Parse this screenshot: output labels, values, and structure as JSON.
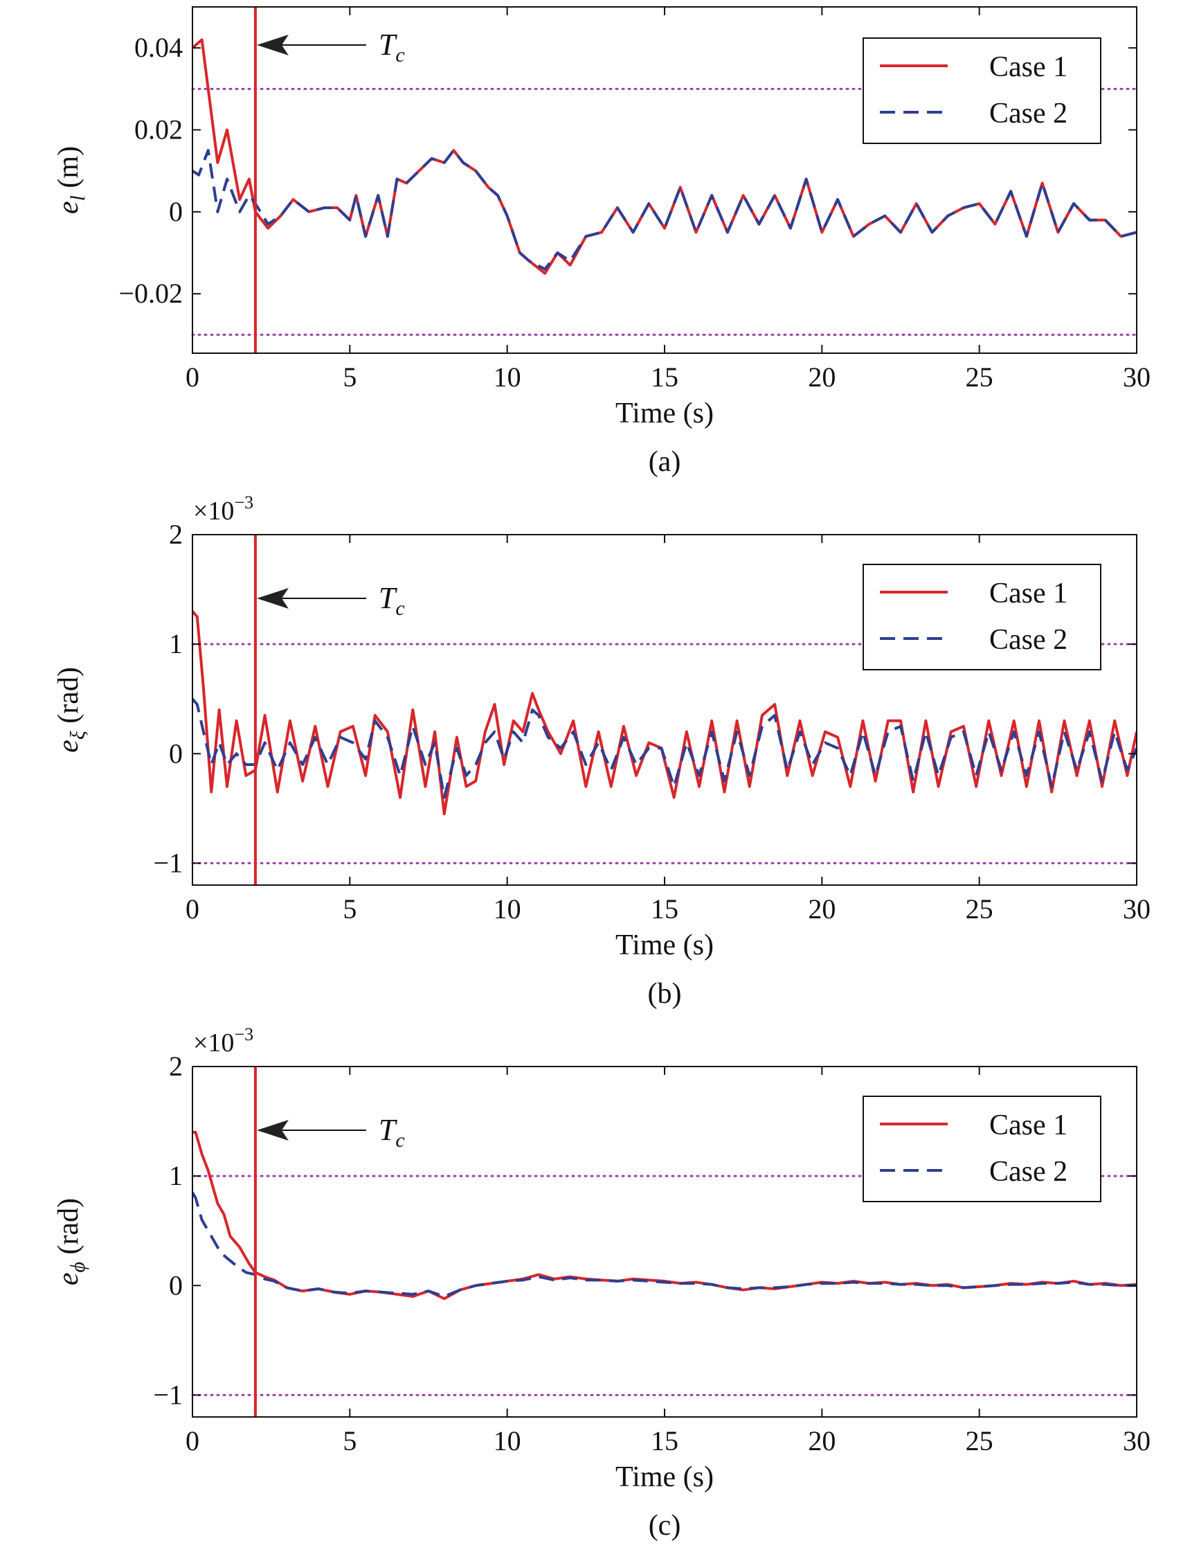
{
  "figure": {
    "legend_entries": [
      "Case 1",
      "Case 2"
    ],
    "annotation_label": "T",
    "annotation_subscript": "c",
    "colors": {
      "case1": "#d9262b",
      "case2": "#2e3e91",
      "bounds": "#9b3fa8",
      "marker": "#d9262b",
      "axes": "#111111"
    }
  },
  "chart_data": [
    {
      "type": "line",
      "caption": "(a)",
      "xlabel": "Time (s)",
      "ylabel_symbol": "e",
      "ylabel_sub": "l",
      "ylabel_unit": " (m)",
      "exponent_label": "",
      "xlim": [
        0,
        30
      ],
      "ylim": [
        -0.0345,
        0.05
      ],
      "xticks": [
        0,
        5,
        10,
        15,
        20,
        25,
        30
      ],
      "yticks": [
        -0.02,
        0,
        0.02,
        0.04
      ],
      "ytick_labels": [
        "−0.02",
        "0",
        "0.02",
        "0.04"
      ],
      "bounds": [
        0.03,
        -0.03
      ],
      "marker_x": 2.0,
      "legend_position": "top-right",
      "series": [
        {
          "name": "Case 1",
          "style": "solid",
          "x": [
            0,
            0.3,
            0.5,
            0.8,
            1.1,
            1.5,
            1.8,
            2.0,
            2.4,
            2.8,
            3.2,
            3.7,
            4.2,
            4.6,
            5.0,
            5.2,
            5.5,
            5.9,
            6.2,
            6.5,
            6.8,
            7.2,
            7.6,
            8.0,
            8.3,
            8.6,
            9.0,
            9.4,
            9.7,
            10.0,
            10.4,
            10.7,
            11.2,
            11.6,
            12.0,
            12.5,
            13.0,
            13.5,
            14.0,
            14.5,
            15.0,
            15.5,
            16.0,
            16.5,
            17.0,
            17.5,
            18.0,
            18.5,
            19.0,
            19.5,
            20.0,
            20.5,
            21.0,
            21.5,
            22.0,
            22.5,
            23.0,
            23.5,
            24.0,
            24.5,
            25.0,
            25.5,
            26.0,
            26.5,
            27.0,
            27.5,
            28.0,
            28.5,
            29.0,
            29.5,
            30.0
          ],
          "y": [
            0.04,
            0.042,
            0.03,
            0.012,
            0.02,
            0.003,
            0.008,
            0.0,
            -0.004,
            -0.001,
            0.003,
            0.0,
            0.001,
            0.001,
            -0.002,
            0.004,
            -0.006,
            0.004,
            -0.006,
            0.008,
            0.007,
            0.01,
            0.013,
            0.012,
            0.015,
            0.012,
            0.01,
            0.006,
            0.004,
            -0.001,
            -0.01,
            -0.012,
            -0.015,
            -0.01,
            -0.013,
            -0.006,
            -0.005,
            0.001,
            -0.005,
            0.002,
            -0.004,
            0.006,
            -0.005,
            0.004,
            -0.005,
            0.004,
            -0.003,
            0.004,
            -0.004,
            0.008,
            -0.005,
            0.003,
            -0.006,
            -0.003,
            -0.001,
            -0.005,
            0.002,
            -0.005,
            -0.001,
            0.001,
            0.002,
            -0.003,
            0.005,
            -0.006,
            0.007,
            -0.005,
            0.002,
            -0.002,
            -0.002,
            -0.006,
            -0.005
          ]
        },
        {
          "name": "Case 2",
          "style": "dashed",
          "x": [
            0,
            0.2,
            0.5,
            0.8,
            1.1,
            1.5,
            1.8,
            2.0,
            2.4,
            2.8,
            3.2,
            3.7,
            4.2,
            4.6,
            5.0,
            5.2,
            5.5,
            5.9,
            6.2,
            6.5,
            6.8,
            7.2,
            7.6,
            8.0,
            8.3,
            8.6,
            9.0,
            9.4,
            9.7,
            10.0,
            10.4,
            10.7,
            11.2,
            11.6,
            12.0,
            12.5,
            13.0,
            13.5,
            14.0,
            14.5,
            15.0,
            15.5,
            16.0,
            16.5,
            17.0,
            17.5,
            18.0,
            18.5,
            19.0,
            19.5,
            20.0,
            20.5,
            21.0,
            21.5,
            22.0,
            22.5,
            23.0,
            23.5,
            24.0,
            24.5,
            25.0,
            25.5,
            26.0,
            26.5,
            27.0,
            27.5,
            28.0,
            28.5,
            29.0,
            29.5,
            30.0
          ],
          "y": [
            0.01,
            0.009,
            0.015,
            0.0,
            0.008,
            0.0,
            0.004,
            0.002,
            -0.003,
            -0.001,
            0.003,
            0.0,
            0.001,
            0.001,
            -0.002,
            0.004,
            -0.006,
            0.004,
            -0.006,
            0.008,
            0.007,
            0.01,
            0.013,
            0.012,
            0.015,
            0.012,
            0.01,
            0.006,
            0.004,
            -0.001,
            -0.01,
            -0.012,
            -0.014,
            -0.01,
            -0.012,
            -0.006,
            -0.005,
            0.001,
            -0.005,
            0.002,
            -0.004,
            0.006,
            -0.005,
            0.004,
            -0.005,
            0.004,
            -0.003,
            0.004,
            -0.004,
            0.008,
            -0.005,
            0.003,
            -0.006,
            -0.003,
            -0.001,
            -0.005,
            0.002,
            -0.005,
            -0.001,
            0.001,
            0.002,
            -0.003,
            0.005,
            -0.006,
            0.007,
            -0.005,
            0.002,
            -0.002,
            -0.002,
            -0.006,
            -0.005
          ]
        }
      ]
    },
    {
      "type": "line",
      "caption": "(b)",
      "xlabel": "Time (s)",
      "ylabel_symbol": "e",
      "ylabel_sub": "ξ",
      "ylabel_unit": " (rad)",
      "exponent_label": "×10",
      "exponent_power": "−3",
      "xlim": [
        0,
        30
      ],
      "ylim": [
        -1.2,
        2
      ],
      "xticks": [
        0,
        5,
        10,
        15,
        20,
        25,
        30
      ],
      "yticks": [
        -1,
        0,
        1,
        2
      ],
      "ytick_labels": [
        "−1",
        "0",
        "1",
        "2"
      ],
      "bounds": [
        1,
        -1
      ],
      "marker_x": 2.0,
      "legend_position": "top-right",
      "series": [
        {
          "name": "Case 1",
          "style": "solid",
          "x": [
            0,
            0.15,
            0.35,
            0.6,
            0.85,
            1.1,
            1.4,
            1.7,
            2.0,
            2.3,
            2.7,
            3.1,
            3.5,
            3.9,
            4.3,
            4.7,
            5.1,
            5.5,
            5.8,
            6.2,
            6.6,
            7.0,
            7.4,
            7.7,
            8.0,
            8.4,
            8.7,
            9.0,
            9.3,
            9.6,
            9.9,
            10.2,
            10.5,
            10.8,
            11.0,
            11.3,
            11.7,
            12.1,
            12.5,
            12.9,
            13.3,
            13.7,
            14.1,
            14.5,
            14.9,
            15.3,
            15.7,
            16.1,
            16.5,
            16.9,
            17.3,
            17.7,
            18.1,
            18.5,
            18.9,
            19.3,
            19.7,
            20.1,
            20.5,
            20.9,
            21.3,
            21.7,
            22.1,
            22.5,
            22.9,
            23.3,
            23.7,
            24.1,
            24.5,
            24.9,
            25.3,
            25.7,
            26.1,
            26.5,
            26.9,
            27.3,
            27.7,
            28.1,
            28.5,
            28.9,
            29.3,
            29.7,
            30.0
          ],
          "y": [
            1.3,
            1.25,
            0.6,
            -0.35,
            0.4,
            -0.3,
            0.3,
            -0.2,
            -0.15,
            0.35,
            -0.35,
            0.3,
            -0.25,
            0.25,
            -0.3,
            0.2,
            0.25,
            -0.2,
            0.35,
            0.2,
            -0.4,
            0.4,
            -0.3,
            0.2,
            -0.55,
            0.15,
            -0.3,
            -0.25,
            0.2,
            0.45,
            -0.1,
            0.3,
            0.2,
            0.55,
            0.4,
            0.2,
            0.0,
            0.3,
            -0.3,
            0.2,
            -0.3,
            0.25,
            -0.2,
            0.1,
            0.05,
            -0.4,
            0.2,
            -0.3,
            0.3,
            -0.35,
            0.3,
            -0.3,
            0.35,
            0.45,
            -0.2,
            0.3,
            -0.2,
            0.2,
            0.15,
            -0.3,
            0.3,
            -0.25,
            0.3,
            0.3,
            -0.35,
            0.3,
            -0.3,
            0.2,
            0.25,
            -0.3,
            0.3,
            -0.2,
            0.3,
            -0.3,
            0.3,
            -0.35,
            0.3,
            -0.2,
            0.3,
            -0.3,
            0.3,
            -0.2,
            0.2
          ]
        },
        {
          "name": "Case 2",
          "style": "dashed",
          "x": [
            0,
            0.15,
            0.35,
            0.6,
            0.85,
            1.1,
            1.4,
            1.7,
            2.0,
            2.3,
            2.7,
            3.1,
            3.5,
            3.9,
            4.3,
            4.7,
            5.1,
            5.5,
            5.8,
            6.2,
            6.6,
            7.0,
            7.4,
            7.7,
            8.0,
            8.4,
            8.7,
            9.0,
            9.3,
            9.6,
            9.9,
            10.2,
            10.5,
            10.8,
            11.0,
            11.3,
            11.7,
            12.1,
            12.5,
            12.9,
            13.3,
            13.7,
            14.1,
            14.5,
            14.9,
            15.3,
            15.7,
            16.1,
            16.5,
            16.9,
            17.3,
            17.7,
            18.1,
            18.5,
            18.9,
            19.3,
            19.7,
            20.1,
            20.5,
            20.9,
            21.3,
            21.7,
            22.1,
            22.5,
            22.9,
            23.3,
            23.7,
            24.1,
            24.5,
            24.9,
            25.3,
            25.7,
            26.1,
            26.5,
            26.9,
            27.3,
            27.7,
            28.1,
            28.5,
            28.9,
            29.3,
            29.7,
            30.0
          ],
          "y": [
            0.5,
            0.45,
            0.2,
            -0.1,
            0.1,
            -0.1,
            0.0,
            -0.1,
            -0.1,
            0.1,
            -0.15,
            0.1,
            -0.1,
            0.15,
            -0.1,
            0.15,
            0.1,
            -0.05,
            0.3,
            0.15,
            -0.2,
            0.25,
            -0.1,
            0.1,
            -0.4,
            0.05,
            -0.2,
            -0.1,
            0.1,
            0.2,
            -0.05,
            0.2,
            0.1,
            0.4,
            0.35,
            0.15,
            0.05,
            0.2,
            -0.1,
            0.1,
            -0.15,
            0.15,
            -0.1,
            0.05,
            0.05,
            -0.3,
            0.1,
            -0.2,
            0.2,
            -0.25,
            0.2,
            -0.2,
            0.25,
            0.35,
            -0.15,
            0.2,
            -0.1,
            0.1,
            0.05,
            -0.2,
            0.2,
            -0.2,
            0.2,
            0.25,
            -0.25,
            0.2,
            -0.2,
            0.15,
            0.2,
            -0.2,
            0.2,
            -0.15,
            0.2,
            -0.2,
            0.2,
            -0.3,
            0.2,
            -0.15,
            0.2,
            -0.25,
            0.2,
            -0.15,
            0.05
          ]
        }
      ]
    },
    {
      "type": "line",
      "caption": "(c)",
      "xlabel": "Time (s)",
      "ylabel_symbol": "e",
      "ylabel_sub": "ϕ",
      "ylabel_unit": " (rad)",
      "exponent_label": "×10",
      "exponent_power": "−3",
      "xlim": [
        0,
        30
      ],
      "ylim": [
        -1.2,
        2
      ],
      "xticks": [
        0,
        5,
        10,
        15,
        20,
        25,
        30
      ],
      "yticks": [
        -1,
        0,
        1,
        2
      ],
      "ytick_labels": [
        "−1",
        "0",
        "1",
        "2"
      ],
      "bounds": [
        1,
        -1
      ],
      "marker_x": 2.0,
      "legend_position": "top-right",
      "series": [
        {
          "name": "Case 1",
          "style": "solid",
          "x": [
            0,
            0.1,
            0.3,
            0.5,
            0.7,
            0.8,
            1.0,
            1.2,
            1.5,
            1.8,
            2.0,
            2.3,
            2.6,
            3.0,
            3.5,
            4.0,
            4.5,
            5.0,
            5.5,
            6.0,
            6.5,
            7.0,
            7.5,
            8.0,
            8.5,
            9.0,
            9.5,
            10.0,
            10.5,
            11.0,
            11.5,
            12.0,
            12.5,
            13.0,
            13.5,
            14.0,
            14.5,
            15.0,
            15.5,
            16.0,
            16.5,
            17.0,
            17.5,
            18.0,
            18.5,
            19.0,
            19.5,
            20.0,
            20.5,
            21.0,
            21.5,
            22.0,
            22.5,
            23.0,
            23.5,
            24.0,
            24.5,
            25.0,
            25.5,
            26.0,
            26.5,
            27.0,
            27.5,
            28.0,
            28.5,
            29.0,
            29.5,
            30.0
          ],
          "y": [
            1.4,
            1.4,
            1.2,
            1.05,
            0.85,
            0.75,
            0.65,
            0.45,
            0.35,
            0.2,
            0.12,
            0.08,
            0.05,
            -0.02,
            -0.05,
            -0.03,
            -0.06,
            -0.08,
            -0.05,
            -0.06,
            -0.08,
            -0.1,
            -0.05,
            -0.12,
            -0.04,
            0.0,
            0.02,
            0.04,
            0.06,
            0.1,
            0.06,
            0.08,
            0.06,
            0.05,
            0.04,
            0.06,
            0.05,
            0.04,
            0.02,
            0.03,
            0.01,
            -0.02,
            -0.04,
            -0.02,
            -0.03,
            -0.01,
            0.01,
            0.03,
            0.02,
            0.04,
            0.02,
            0.03,
            0.01,
            0.02,
            0.0,
            0.01,
            -0.02,
            -0.01,
            0.0,
            0.02,
            0.01,
            0.03,
            0.02,
            0.04,
            0.01,
            0.02,
            0.0,
            0.01
          ]
        },
        {
          "name": "Case 2",
          "style": "dashed",
          "x": [
            0,
            0.1,
            0.3,
            0.5,
            0.7,
            0.9,
            1.1,
            1.4,
            1.7,
            2.0,
            2.3,
            2.6,
            3.0,
            3.5,
            4.0,
            4.5,
            5.0,
            5.5,
            6.0,
            6.5,
            7.0,
            7.5,
            8.0,
            8.5,
            9.0,
            9.5,
            10.0,
            10.5,
            11.0,
            11.5,
            12.0,
            12.5,
            13.0,
            13.5,
            14.0,
            14.5,
            15.0,
            15.5,
            16.0,
            16.5,
            17.0,
            17.5,
            18.0,
            18.5,
            19.0,
            19.5,
            20.0,
            20.5,
            21.0,
            21.5,
            22.0,
            22.5,
            23.0,
            23.5,
            24.0,
            24.5,
            25.0,
            25.5,
            26.0,
            26.5,
            27.0,
            27.5,
            28.0,
            28.5,
            29.0,
            29.5,
            30.0
          ],
          "y": [
            0.85,
            0.8,
            0.6,
            0.5,
            0.4,
            0.3,
            0.25,
            0.18,
            0.12,
            0.1,
            0.06,
            0.04,
            -0.02,
            -0.05,
            -0.03,
            -0.06,
            -0.07,
            -0.05,
            -0.06,
            -0.07,
            -0.08,
            -0.05,
            -0.1,
            -0.04,
            0.0,
            0.02,
            0.04,
            0.05,
            0.08,
            0.05,
            0.07,
            0.05,
            0.05,
            0.04,
            0.05,
            0.04,
            0.03,
            0.02,
            0.02,
            0.01,
            -0.02,
            -0.03,
            -0.02,
            -0.02,
            -0.01,
            0.01,
            0.02,
            0.02,
            0.03,
            0.02,
            0.02,
            0.01,
            0.01,
            0.0,
            0.0,
            -0.02,
            -0.01,
            0.0,
            0.01,
            0.01,
            0.02,
            0.02,
            0.03,
            0.01,
            0.01,
            0.0,
            0.0
          ]
        }
      ]
    }
  ]
}
